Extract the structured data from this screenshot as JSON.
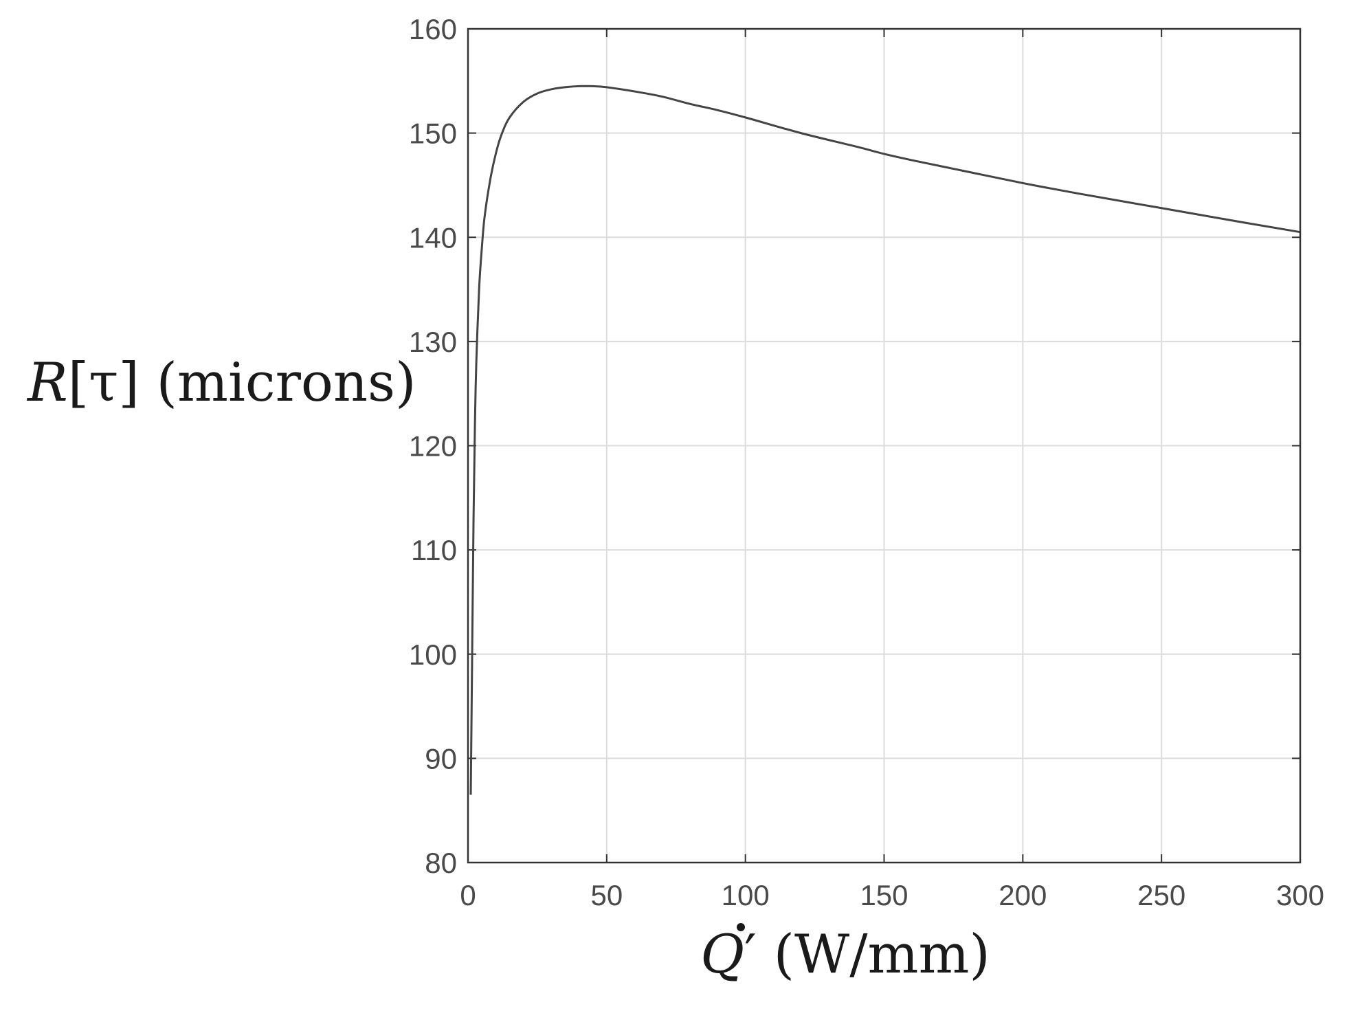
{
  "chart_data": {
    "type": "line",
    "xlabel": {
      "var": "Q",
      "prime": "′",
      "unit": " (W/mm)"
    },
    "ylabel": {
      "var": "R",
      "arg": "[τ]",
      "unit": " (microns)"
    },
    "xlim": [
      0,
      300
    ],
    "ylim": [
      80,
      160
    ],
    "xticks": [
      0,
      50,
      100,
      150,
      200,
      250,
      300
    ],
    "yticks": [
      80,
      90,
      100,
      110,
      120,
      130,
      140,
      150,
      160
    ],
    "grid": true,
    "series": [
      {
        "color": "#444444",
        "x": [
          1,
          1.5,
          2,
          2.5,
          3,
          4,
          5,
          6,
          8,
          10,
          12,
          15,
          20,
          25,
          30,
          35,
          40,
          45,
          50,
          60,
          70,
          80,
          90,
          100,
          120,
          140,
          150,
          160,
          180,
          200,
          220,
          250,
          280,
          300
        ],
        "y": [
          86.5,
          100,
          113,
          122,
          128,
          135,
          139,
          142,
          145.5,
          148,
          149.8,
          151.5,
          153,
          153.8,
          154.2,
          154.4,
          154.5,
          154.5,
          154.4,
          154,
          153.5,
          152.8,
          152.2,
          151.5,
          150,
          148.7,
          148,
          147.4,
          146.3,
          145.2,
          144.2,
          142.8,
          141.4,
          140.5
        ]
      }
    ]
  }
}
